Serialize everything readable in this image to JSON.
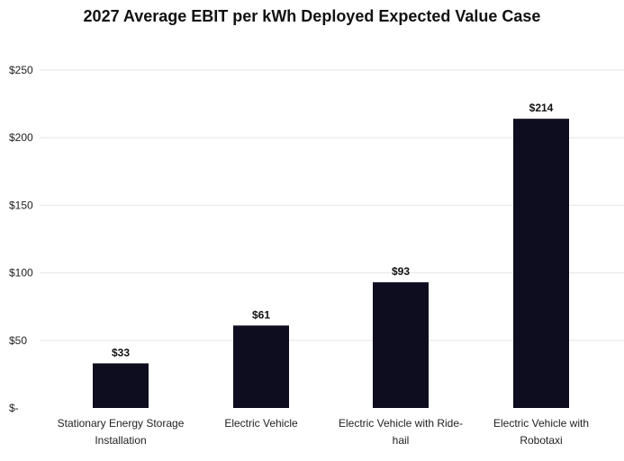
{
  "chart_data": {
    "type": "bar",
    "title": "2027 Average EBIT per kWh Deployed Expected Value Case",
    "categories": [
      [
        "Stationary Energy Storage",
        "Installation"
      ],
      [
        "Electric Vehicle"
      ],
      [
        "Electric Vehicle with Ride-",
        "hail"
      ],
      [
        "Electric Vehicle with",
        "Robotaxi"
      ]
    ],
    "values": [
      33,
      61,
      93,
      214
    ],
    "data_labels": [
      "$33",
      "$61",
      "$93",
      "$214"
    ],
    "ylim": [
      0,
      250
    ],
    "yticks": [
      0,
      50,
      100,
      150,
      200,
      250
    ],
    "ytick_labels": [
      "$-",
      "$50",
      "$100",
      "$150",
      "$200",
      "$250"
    ],
    "xlabel": "",
    "ylabel": "",
    "grid": true,
    "colors": {
      "bar": "#0d0d1f",
      "grid": "#e6e6e6",
      "text": "#222222"
    }
  }
}
